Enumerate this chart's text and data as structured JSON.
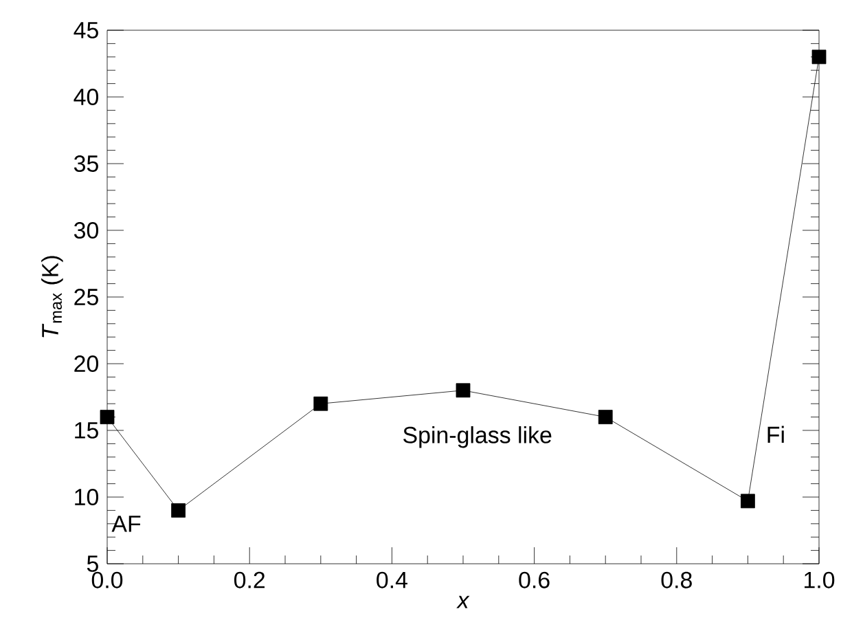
{
  "chart_data": {
    "type": "line",
    "xlabel": "x",
    "ylabel": "*T*$_{max}$ (K)",
    "x": [
      0.0,
      0.1,
      0.3,
      0.5,
      0.7,
      0.9,
      1.0
    ],
    "values": [
      16,
      9,
      17,
      18,
      16,
      9.7,
      43
    ],
    "color": "#000000",
    "marker": "square",
    "line_style": "solid",
    "xlim": [
      0,
      1
    ],
    "ylim": [
      5,
      45
    ],
    "xticks": [
      {
        "value": 0,
        "label": "0.0"
      },
      {
        "value": 0.2,
        "label": "0.2"
      },
      {
        "value": 0.4,
        "label": "0.4"
      },
      {
        "value": 0.6,
        "label": "0.6"
      },
      {
        "value": 0.8,
        "label": "0.8"
      },
      {
        "value": 1,
        "label": "1.0"
      }
    ],
    "yticks": [
      5,
      10,
      15,
      20,
      25,
      30,
      35,
      40,
      45
    ],
    "annotations": [
      "AF",
      "Spin-glass like",
      "Fi"
    ],
    "grid": false
  }
}
